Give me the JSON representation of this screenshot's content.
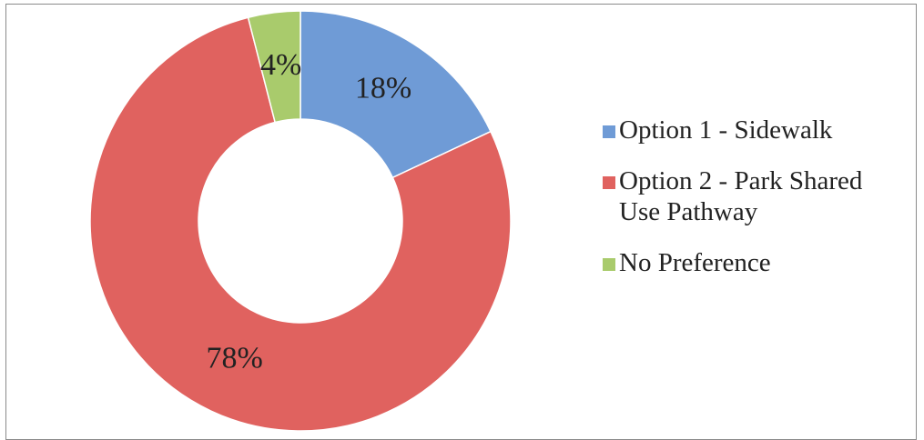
{
  "chart_data": {
    "type": "donut",
    "categories": [
      "Option 1 - Sidewalk",
      "Option 2 - Park Shared Use Pathway",
      "No Preference"
    ],
    "values": [
      18,
      78,
      4
    ],
    "value_labels": [
      "18%",
      "78%",
      "4%"
    ],
    "colors": [
      "#6f9bd6",
      "#e0625f",
      "#a9cb6c"
    ],
    "legend": "right"
  }
}
